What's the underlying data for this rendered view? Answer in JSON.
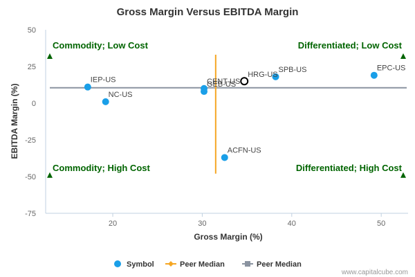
{
  "chart_data": {
    "type": "scatter",
    "title": "Gross Margin Versus EBITDA Margin",
    "xlabel": "Gross Margin (%)",
    "ylabel": "EBITDA Margin (%)",
    "xlim": [
      12.5,
      53
    ],
    "ylim": [
      -75,
      50
    ],
    "xticks": [
      20,
      30,
      40,
      50
    ],
    "yticks": [
      50,
      25,
      0,
      -25,
      -50,
      -75
    ],
    "grid": false,
    "points": [
      {
        "label": "IEP-US",
        "x": 17.2,
        "y": 11.0
      },
      {
        "label": "NC-US",
        "x": 19.2,
        "y": 1.0
      },
      {
        "label": "CENT-US",
        "x": 30.2,
        "y": 10.0
      },
      {
        "label": "GEB-US",
        "x": 30.2,
        "y": 8.0
      },
      {
        "label": "ACFN-US",
        "x": 32.5,
        "y": -37.0
      },
      {
        "label": "SPB-US",
        "x": 38.2,
        "y": 18.0
      },
      {
        "label": "EPC-US",
        "x": 49.2,
        "y": 19.0
      }
    ],
    "highlight": {
      "label": "HRG-US",
      "x": 34.7,
      "y": 15.0
    },
    "peer_median_x": 31.5,
    "peer_median_x_span": [
      -48,
      33
    ],
    "peer_median_y": 10.5,
    "quadrants": {
      "top_left": "Commodity; Low Cost",
      "top_right": "Differentiated; Low Cost",
      "bottom_left": "Commodity; High Cost",
      "bottom_right": "Differentiated; High Cost"
    },
    "legend": [
      {
        "label": "Symbol",
        "color": "#1a9fe8",
        "marker": "circle"
      },
      {
        "label": "Peer Median",
        "color": "#f5a623",
        "marker": "diamond"
      },
      {
        "label": "Peer Median",
        "color": "#8a93a0",
        "marker": "square"
      }
    ],
    "legend_position": "bottom",
    "colors": {
      "point": "#1a9fe8",
      "peer_median_x": "#f5a623",
      "peer_median_y": "#8a93a0",
      "quadrant_text": "#006400",
      "quadrant_marker": "#006400"
    }
  },
  "footer": {
    "source": "www.capitalcube.com"
  }
}
